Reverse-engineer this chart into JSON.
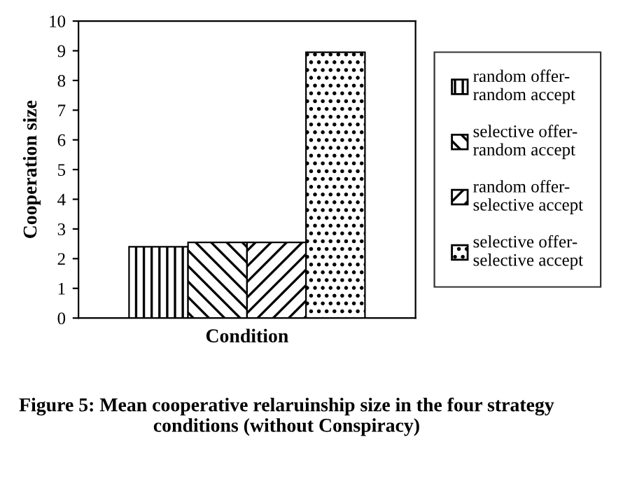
{
  "chart_data": {
    "type": "bar",
    "title": "Figure 5: Mean cooperative relaruinship size in the four strategy conditions (without Conspiracy)",
    "xlabel": "Condition",
    "ylabel": "Cooperation size",
    "categories": [
      null
    ],
    "series": [
      {
        "name": "random offer-\nrandom accept",
        "color": "#000000",
        "values": [
          2.4
        ]
      },
      {
        "name": "selective offer-\nrandom accept",
        "color": "#000000",
        "values": [
          2.55
        ]
      },
      {
        "name": "random offer-\nselective accept",
        "color": "#000000",
        "values": [
          2.55
        ]
      },
      {
        "name": "selective offer-\nselective accept",
        "color": "#000000",
        "values": [
          8.95
        ]
      }
    ],
    "ylim": [
      0,
      10
    ],
    "yticks": [
      0,
      1,
      2,
      3,
      4,
      5,
      6,
      7,
      8,
      9,
      10
    ],
    "grid": false,
    "legend": "right"
  }
}
